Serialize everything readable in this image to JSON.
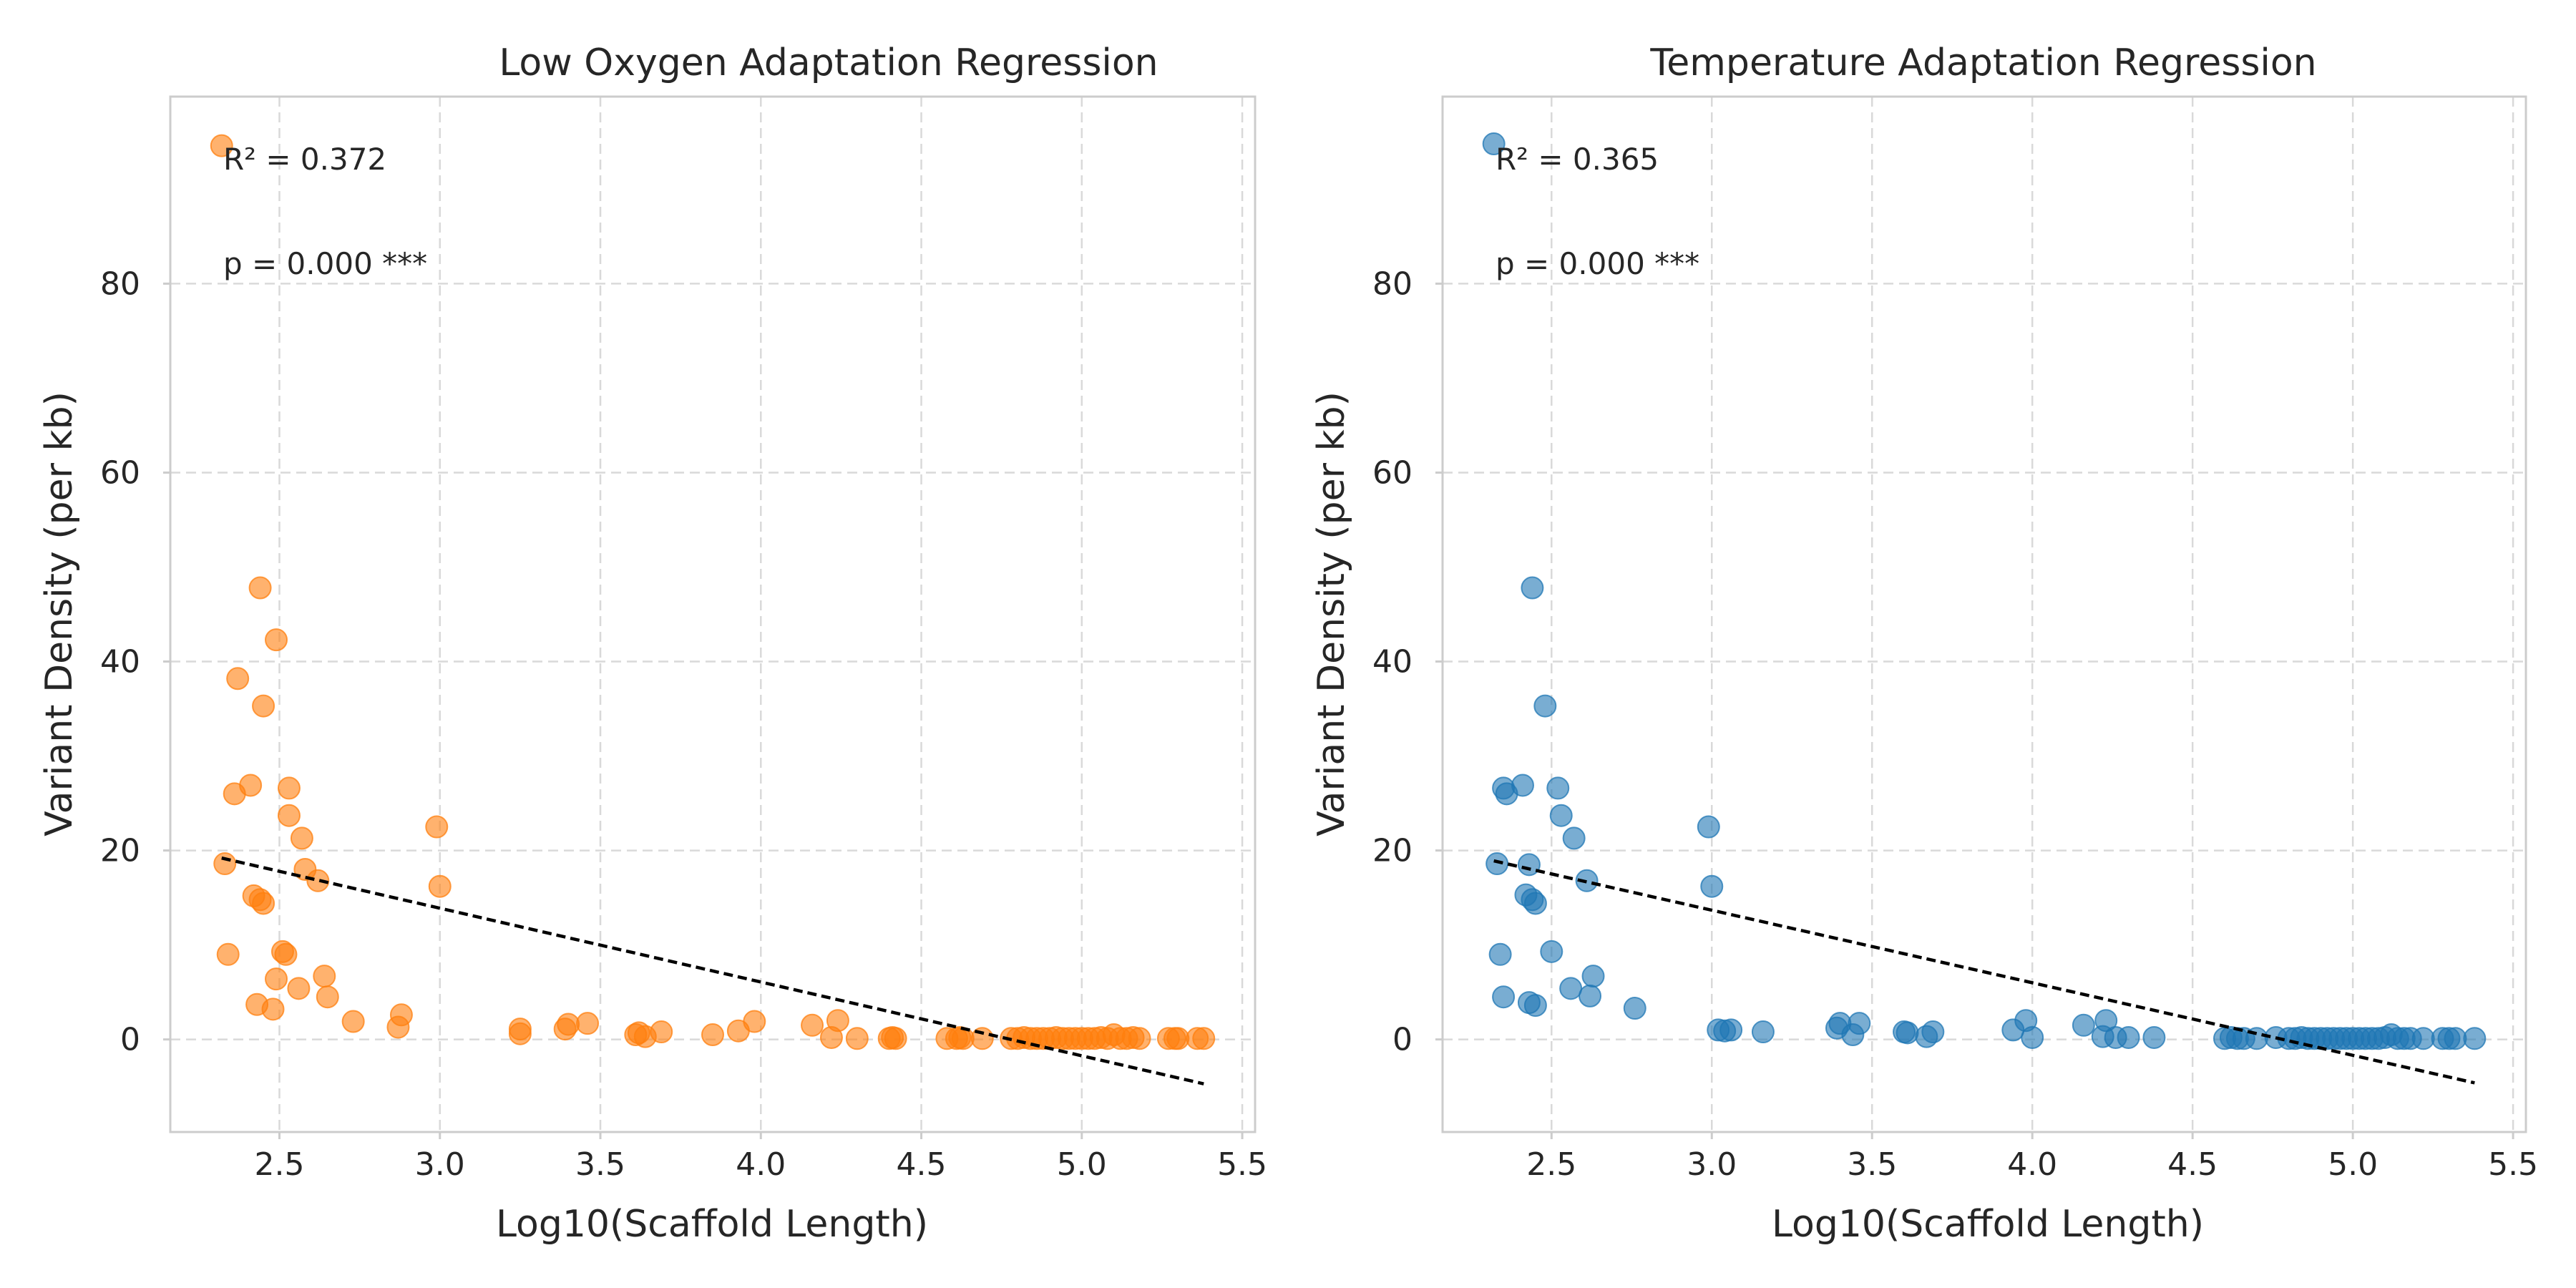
{
  "chart_data": [
    {
      "type": "scatter",
      "title": "Low Oxygen Adaptation Regression",
      "xlabel": "Log10(Scaffold Length)",
      "ylabel": "Variant Density (per kb)",
      "xlim": [
        2.16,
        5.54
      ],
      "ylim": [
        -9.8,
        99.8
      ],
      "xticks": [
        2.5,
        3.0,
        3.5,
        4.0,
        4.5,
        5.0,
        5.5
      ],
      "xtick_labels": [
        "2.5",
        "3.0",
        "3.5",
        "4.0",
        "4.5",
        "5.0",
        "5.5"
      ],
      "yticks": [
        0,
        20,
        40,
        60,
        80
      ],
      "ytick_labels": [
        "0",
        "20",
        "40",
        "60",
        "80"
      ],
      "grid": true,
      "color": "#ff7f0e",
      "annotations": [
        "R² = 0.372",
        "p = 0.000 ***"
      ],
      "regression_line": {
        "x": [
          2.32,
          5.38
        ],
        "y": [
          19.2,
          -4.7
        ]
      },
      "series": [
        {
          "x": [
            2.32,
            2.33,
            2.34,
            2.36,
            2.37,
            2.41,
            2.42,
            2.43,
            2.44,
            2.44,
            2.45,
            2.45,
            2.48,
            2.49,
            2.49,
            2.51,
            2.52,
            2.53,
            2.53,
            2.56,
            2.57,
            2.58,
            2.62,
            2.64,
            2.65,
            2.73,
            2.87,
            2.88,
            2.99,
            3.0,
            3.25,
            3.25,
            3.39,
            3.4,
            3.46,
            3.61,
            3.62,
            3.64,
            3.69,
            3.85,
            3.93,
            3.98,
            4.16,
            4.22,
            4.24,
            4.3,
            4.4,
            4.41,
            4.42,
            4.58,
            4.61,
            4.62,
            4.63,
            4.69,
            4.78,
            4.8,
            4.82,
            4.84,
            4.86,
            4.88,
            4.9,
            4.92,
            4.94,
            4.96,
            4.98,
            5.0,
            5.02,
            5.04,
            5.06,
            5.08,
            5.1,
            5.12,
            5.14,
            5.16,
            5.18,
            5.27,
            5.29,
            5.3,
            5.36,
            5.38
          ],
          "y": [
            94.6,
            18.6,
            9.0,
            26.0,
            38.2,
            26.9,
            15.2,
            3.7,
            14.8,
            47.8,
            14.4,
            35.3,
            3.2,
            6.4,
            42.3,
            9.3,
            9.0,
            23.7,
            26.6,
            5.4,
            21.3,
            18.0,
            16.8,
            6.7,
            4.5,
            1.9,
            1.3,
            2.6,
            22.5,
            16.2,
            0.6,
            1.1,
            1.1,
            1.6,
            1.7,
            0.5,
            0.7,
            0.3,
            0.8,
            0.5,
            0.9,
            1.9,
            1.5,
            0.2,
            2.0,
            0.1,
            0.1,
            0.2,
            0.1,
            0.1,
            0.1,
            0.2,
            0.1,
            0.1,
            0.1,
            0.1,
            0.2,
            0.1,
            0.1,
            0.1,
            0.1,
            0.2,
            0.1,
            0.1,
            0.1,
            0.1,
            0.1,
            0.1,
            0.2,
            0.1,
            0.5,
            0.1,
            0.1,
            0.2,
            0.1,
            0.1,
            0.1,
            0.1,
            0.1,
            0.1
          ]
        }
      ]
    },
    {
      "type": "scatter",
      "title": "Temperature Adaptation Regression",
      "xlabel": "Log10(Scaffold Length)",
      "ylabel": "Variant Density (per kb)",
      "xlim": [
        2.16,
        5.54
      ],
      "ylim": [
        -9.8,
        99.8
      ],
      "xticks": [
        2.5,
        3.0,
        3.5,
        4.0,
        4.5,
        5.0,
        5.5
      ],
      "xtick_labels": [
        "2.5",
        "3.0",
        "3.5",
        "4.0",
        "4.5",
        "5.0",
        "5.5"
      ],
      "yticks": [
        0,
        20,
        40,
        60,
        80
      ],
      "ytick_labels": [
        "0",
        "20",
        "40",
        "60",
        "80"
      ],
      "grid": true,
      "color": "#1f77b4",
      "annotations": [
        "R² = 0.365",
        "p = 0.000 ***"
      ],
      "regression_line": {
        "x": [
          2.32,
          5.38
        ],
        "y": [
          18.9,
          -4.6
        ]
      },
      "series": [
        {
          "x": [
            2.32,
            2.33,
            2.34,
            2.35,
            2.35,
            2.36,
            2.41,
            2.42,
            2.43,
            2.43,
            2.44,
            2.44,
            2.45,
            2.45,
            2.48,
            2.5,
            2.52,
            2.53,
            2.56,
            2.57,
            2.61,
            2.62,
            2.63,
            2.76,
            2.99,
            3.0,
            3.02,
            3.04,
            3.06,
            3.16,
            3.39,
            3.4,
            3.44,
            3.46,
            3.6,
            3.61,
            3.67,
            3.69,
            3.94,
            3.98,
            4.0,
            4.16,
            4.22,
            4.23,
            4.26,
            4.3,
            4.38,
            4.6,
            4.62,
            4.64,
            4.66,
            4.7,
            4.76,
            4.8,
            4.82,
            4.84,
            4.86,
            4.88,
            4.9,
            4.92,
            4.94,
            4.96,
            4.98,
            5.0,
            5.02,
            5.04,
            5.06,
            5.08,
            5.1,
            5.12,
            5.14,
            5.16,
            5.18,
            5.22,
            5.28,
            5.3,
            5.32,
            5.38
          ],
          "y": [
            94.8,
            18.6,
            9.0,
            4.5,
            26.6,
            26.0,
            26.9,
            15.3,
            18.5,
            3.9,
            14.8,
            47.8,
            14.4,
            3.6,
            35.3,
            9.3,
            26.6,
            23.7,
            5.4,
            21.3,
            16.8,
            4.6,
            6.7,
            3.3,
            22.5,
            16.2,
            1.0,
            0.9,
            1.0,
            0.8,
            1.2,
            1.7,
            0.5,
            1.7,
            0.8,
            0.7,
            0.3,
            0.8,
            1.0,
            2.0,
            0.2,
            1.5,
            0.3,
            2.0,
            0.2,
            0.2,
            0.2,
            0.1,
            0.2,
            0.1,
            0.1,
            0.1,
            0.2,
            0.1,
            0.1,
            0.2,
            0.1,
            0.1,
            0.1,
            0.1,
            0.1,
            0.1,
            0.1,
            0.1,
            0.1,
            0.1,
            0.1,
            0.1,
            0.2,
            0.5,
            0.1,
            0.1,
            0.1,
            0.1,
            0.1,
            0.1,
            0.1,
            0.1
          ]
        }
      ]
    }
  ]
}
